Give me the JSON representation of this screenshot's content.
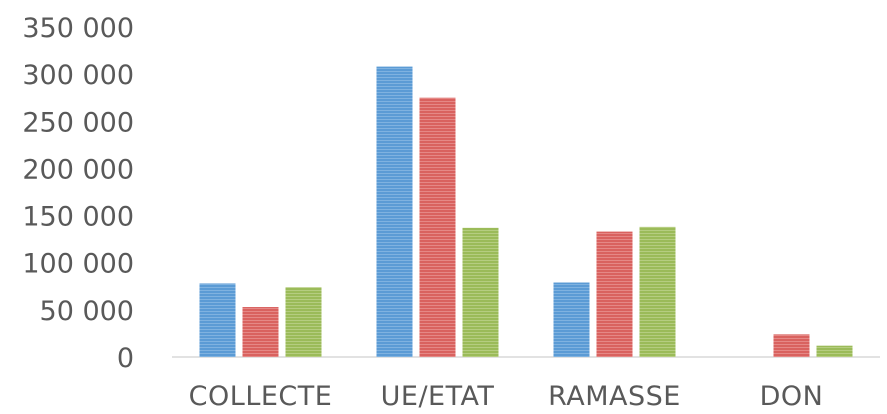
{
  "chart_data": {
    "type": "bar",
    "title": "",
    "xlabel": "",
    "ylabel": "",
    "categories": [
      "COLLECTE",
      "UE/ETAT",
      "RAMASSE",
      "DON"
    ],
    "y_ticks": [
      "0",
      "50 000",
      "100 000",
      "150 000",
      "200 000",
      "250 000",
      "300 000",
      "350 000"
    ],
    "ylim": [
      0,
      350000
    ],
    "grid": false,
    "legend": "none",
    "series": [
      {
        "color": "#5b9bd5",
        "values": [
          78000,
          308000,
          79000,
          0
        ]
      },
      {
        "color": "#d9625f",
        "values": [
          53000,
          275000,
          133000,
          24000
        ]
      },
      {
        "color": "#9bbb59",
        "values": [
          74000,
          137000,
          138000,
          12000
        ]
      }
    ]
  }
}
